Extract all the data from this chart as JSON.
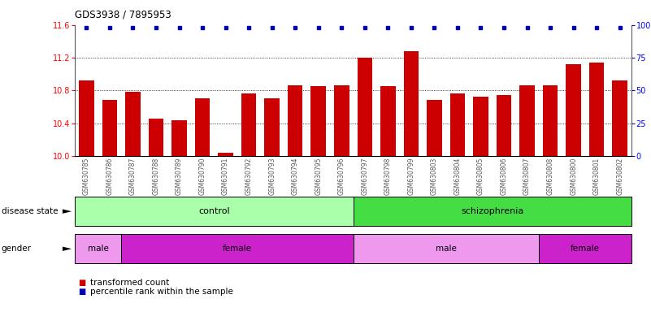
{
  "title": "GDS3938 / 7895953",
  "samples": [
    "GSM630785",
    "GSM630786",
    "GSM630787",
    "GSM630788",
    "GSM630789",
    "GSM630790",
    "GSM630791",
    "GSM630792",
    "GSM630793",
    "GSM630794",
    "GSM630795",
    "GSM630796",
    "GSM630797",
    "GSM630798",
    "GSM630799",
    "GSM630803",
    "GSM630804",
    "GSM630805",
    "GSM630806",
    "GSM630807",
    "GSM630808",
    "GSM630800",
    "GSM630801",
    "GSM630802"
  ],
  "bar_values": [
    10.92,
    10.68,
    10.78,
    10.46,
    10.44,
    10.7,
    10.04,
    10.76,
    10.7,
    10.86,
    10.85,
    10.86,
    11.2,
    10.85,
    11.28,
    10.68,
    10.76,
    10.72,
    10.74,
    10.86,
    10.86,
    11.12,
    11.14,
    10.92
  ],
  "ylim_left": [
    10.0,
    11.6
  ],
  "ylim_right": [
    0,
    100
  ],
  "yticks_left": [
    10.0,
    10.4,
    10.8,
    11.2,
    11.6
  ],
  "yticks_right": [
    0,
    25,
    50,
    75,
    100
  ],
  "bar_color": "#cc0000",
  "percentile_color": "#0000bb",
  "disease_state_control_color": "#aaffaa",
  "disease_state_schiz_color": "#44dd44",
  "gender_male_color": "#ee99ee",
  "gender_female_color": "#cc22cc",
  "n_control": 12,
  "n_schiz": 12,
  "gender_male1_count": 2,
  "gender_female1_count": 10,
  "gender_male2_count": 8,
  "gender_female2_count": 4,
  "legend_items": [
    {
      "color": "#cc0000",
      "label": "transformed count"
    },
    {
      "color": "#0000bb",
      "label": "percentile rank within the sample"
    }
  ]
}
